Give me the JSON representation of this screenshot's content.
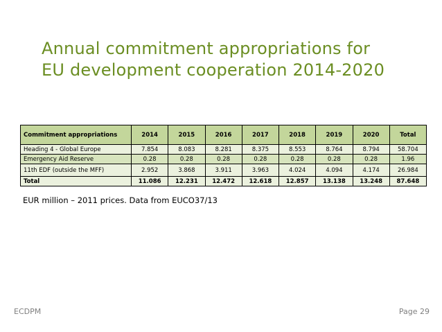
{
  "title": {
    "line1": "Annual commitment appropriations for",
    "line2": "EU development cooperation 2014-2020"
  },
  "table": {
    "header": [
      "Commitment appropriations",
      "2014",
      "2015",
      "2016",
      "2017",
      "2018",
      "2019",
      "2020",
      "Total"
    ],
    "rows": [
      [
        "Heading 4 - Global Europe",
        "7.854",
        "8.083",
        "8.281",
        "8.375",
        "8.553",
        "8.764",
        "8.794",
        "58.704"
      ],
      [
        "Emergency Aid Reserve",
        "0.28",
        "0.28",
        "0.28",
        "0.28",
        "0.28",
        "0.28",
        "0.28",
        "1.96"
      ],
      [
        "11th EDF (outside the MFF)",
        "2.952",
        "3.868",
        "3.911",
        "3.963",
        "4.024",
        "4.094",
        "4.174",
        "26.984"
      ],
      [
        "Total",
        "11.086",
        "12.231",
        "12.472",
        "12.618",
        "12.857",
        "13.138",
        "13.248",
        "87.648"
      ]
    ]
  },
  "note": "EUR million – 2011 prices. Data from EUCO37/13",
  "footer": {
    "org": "ECDPM",
    "page": "Page 29"
  },
  "colors": {
    "title": "#6b8e23",
    "header_bg": "#c3d69b",
    "row_light": "#ebf1de",
    "row_dark": "#d7e4bd",
    "footer_text": "#7f7f7f"
  }
}
